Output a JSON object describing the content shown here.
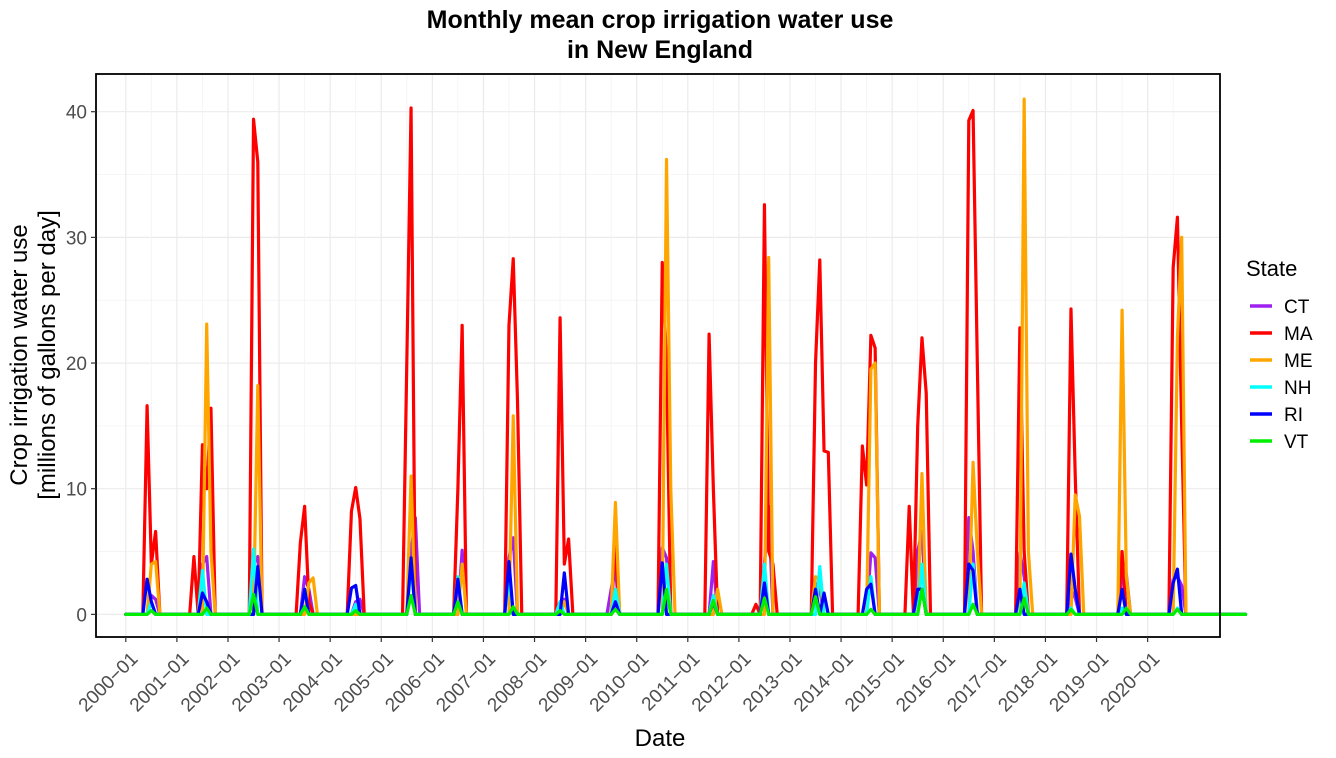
{
  "chart_data": {
    "type": "line",
    "title_line1": "Monthly mean crop irrigation water use",
    "title_line2": "in New England",
    "xlabel": "Date",
    "ylabel_line1": "Crop irrigation water use",
    "ylabel_line2": "[millions of gallons per day]",
    "ylim": [
      -1.8,
      43
    ],
    "yticks": [
      0,
      10,
      20,
      30,
      40
    ],
    "xlim": [
      "1999-06",
      "2021-06"
    ],
    "xticks": [
      "2000-01",
      "2001-01",
      "2002-01",
      "2003-01",
      "2004-01",
      "2005-01",
      "2006-01",
      "2007-01",
      "2008-01",
      "2009-01",
      "2010-01",
      "2011-01",
      "2012-01",
      "2013-01",
      "2014-01",
      "2015-01",
      "2016-01",
      "2017-01",
      "2018-01",
      "2019-01",
      "2020-01"
    ],
    "x_range": [
      "2000-01",
      "2021-12"
    ],
    "grid": true,
    "legend_placement": "right",
    "legend_title": "State",
    "series": [
      {
        "name": "CT",
        "color": "#a020f0",
        "peaks": [
          [
            "2000-07",
            1.5
          ],
          [
            "2000-08",
            1.2
          ],
          [
            "2001-07",
            4.0
          ],
          [
            "2001-08",
            4.6
          ],
          [
            "2002-07",
            4.0
          ],
          [
            "2002-08",
            4.6
          ],
          [
            "2003-07",
            3.0
          ],
          [
            "2003-08",
            2.0
          ],
          [
            "2004-07",
            1.0
          ],
          [
            "2004-08",
            1.2
          ],
          [
            "2005-08",
            5.0
          ],
          [
            "2005-09",
            7.7
          ],
          [
            "2006-08",
            5.1
          ],
          [
            "2007-07",
            4.5
          ],
          [
            "2007-08",
            6.1
          ],
          [
            "2008-07",
            1.0
          ],
          [
            "2008-08",
            1.2
          ],
          [
            "2009-07",
            2.0
          ],
          [
            "2009-08",
            3.6
          ],
          [
            "2010-07",
            5.3
          ],
          [
            "2010-08",
            4.5
          ],
          [
            "2011-07",
            4.2
          ],
          [
            "2012-07",
            4.0
          ],
          [
            "2012-08",
            8.6
          ],
          [
            "2013-07",
            2.5
          ],
          [
            "2013-08",
            2.0
          ],
          [
            "2014-08",
            4.9
          ],
          [
            "2014-09",
            4.5
          ],
          [
            "2015-07",
            5.0
          ],
          [
            "2015-08",
            6.6
          ],
          [
            "2016-07",
            7.7
          ],
          [
            "2016-08",
            5.0
          ],
          [
            "2017-07",
            4.9
          ],
          [
            "2017-08",
            3.0
          ],
          [
            "2018-07",
            2.0
          ],
          [
            "2018-08",
            1.3
          ],
          [
            "2019-07",
            3.0
          ],
          [
            "2019-08",
            3.2
          ],
          [
            "2020-07",
            2.8
          ],
          [
            "2020-08",
            3.0
          ],
          [
            "2020-09",
            2.3
          ]
        ]
      },
      {
        "name": "MA",
        "color": "#ff0000",
        "peaks": [
          [
            "2000-06",
            16.6
          ],
          [
            "2000-07",
            4.0
          ],
          [
            "2000-08",
            6.6
          ],
          [
            "2001-05",
            4.6
          ],
          [
            "2001-07",
            13.5
          ],
          [
            "2001-08",
            10.0
          ],
          [
            "2001-09",
            16.4
          ],
          [
            "2002-07",
            39.4
          ],
          [
            "2002-08",
            36.0
          ],
          [
            "2003-06",
            5.7
          ],
          [
            "2003-07",
            8.6
          ],
          [
            "2003-08",
            1.0
          ],
          [
            "2004-06",
            8.2
          ],
          [
            "2004-07",
            10.1
          ],
          [
            "2004-08",
            7.6
          ],
          [
            "2005-07",
            20.0
          ],
          [
            "2005-08",
            40.3
          ],
          [
            "2006-07",
            10.0
          ],
          [
            "2006-08",
            23.0
          ],
          [
            "2007-07",
            23.0
          ],
          [
            "2007-08",
            28.3
          ],
          [
            "2007-09",
            17.0
          ],
          [
            "2008-07",
            23.6
          ],
          [
            "2008-08",
            4.0
          ],
          [
            "2008-09",
            6.0
          ],
          [
            "2009-08",
            5.8
          ],
          [
            "2010-07",
            28.0
          ],
          [
            "2010-08",
            20.0
          ],
          [
            "2011-06",
            22.3
          ],
          [
            "2011-07",
            10.0
          ],
          [
            "2012-05",
            0.8
          ],
          [
            "2012-07",
            32.6
          ],
          [
            "2012-08",
            5.0
          ],
          [
            "2012-09",
            4.0
          ],
          [
            "2013-07",
            20.0
          ],
          [
            "2013-08",
            28.2
          ],
          [
            "2013-09",
            13.0
          ],
          [
            "2013-10",
            12.9
          ],
          [
            "2014-06",
            13.4
          ],
          [
            "2014-07",
            10.3
          ],
          [
            "2014-08",
            22.2
          ],
          [
            "2014-09",
            21.2
          ],
          [
            "2015-05",
            8.6
          ],
          [
            "2015-07",
            15.0
          ],
          [
            "2015-08",
            22.0
          ],
          [
            "2015-09",
            17.6
          ],
          [
            "2016-07",
            39.3
          ],
          [
            "2016-08",
            40.1
          ],
          [
            "2016-09",
            20.0
          ],
          [
            "2017-07",
            22.8
          ],
          [
            "2017-08",
            5.0
          ],
          [
            "2018-07",
            24.3
          ],
          [
            "2018-08",
            11.0
          ],
          [
            "2019-07",
            5.0
          ],
          [
            "2020-07",
            27.6
          ],
          [
            "2020-08",
            31.6
          ],
          [
            "2020-09",
            15.0
          ]
        ]
      },
      {
        "name": "ME",
        "color": "#ffa500",
        "peaks": [
          [
            "2000-07",
            4.0
          ],
          [
            "2000-08",
            4.2
          ],
          [
            "2001-08",
            23.1
          ],
          [
            "2001-09",
            5.0
          ],
          [
            "2002-08",
            18.2
          ],
          [
            "2003-08",
            2.5
          ],
          [
            "2003-09",
            2.9
          ],
          [
            "2005-08",
            11.0
          ],
          [
            "2006-08",
            4.0
          ],
          [
            "2007-08",
            15.8
          ],
          [
            "2008-08",
            1.0
          ],
          [
            "2009-08",
            8.9
          ],
          [
            "2010-08",
            36.2
          ],
          [
            "2010-09",
            10.0
          ],
          [
            "2011-08",
            2.0
          ],
          [
            "2012-08",
            28.4
          ],
          [
            "2013-07",
            3.0
          ],
          [
            "2013-08",
            2.8
          ],
          [
            "2014-08",
            19.5
          ],
          [
            "2014-09",
            20.0
          ],
          [
            "2015-08",
            11.2
          ],
          [
            "2016-08",
            12.1
          ],
          [
            "2016-09",
            5.0
          ],
          [
            "2017-08",
            41.0
          ],
          [
            "2017-09",
            5.0
          ],
          [
            "2018-08",
            9.5
          ],
          [
            "2018-09",
            7.8
          ],
          [
            "2019-07",
            24.2
          ],
          [
            "2019-08",
            3.0
          ],
          [
            "2020-08",
            22.0
          ],
          [
            "2020-09",
            30.0
          ]
        ]
      },
      {
        "name": "NH",
        "color": "#00ffff",
        "peaks": [
          [
            "2000-07",
            1.0
          ],
          [
            "2001-07",
            3.5
          ],
          [
            "2002-07",
            5.2
          ],
          [
            "2003-07",
            2.0
          ],
          [
            "2004-07",
            0.8
          ],
          [
            "2005-08",
            4.0
          ],
          [
            "2006-07",
            3.0
          ],
          [
            "2007-07",
            3.0
          ],
          [
            "2008-07",
            1.0
          ],
          [
            "2009-08",
            2.0
          ],
          [
            "2010-08",
            4.0
          ],
          [
            "2011-07",
            1.5
          ],
          [
            "2012-07",
            4.0
          ],
          [
            "2013-08",
            3.8
          ],
          [
            "2014-08",
            3.0
          ],
          [
            "2015-08",
            4.0
          ],
          [
            "2016-08",
            4.0
          ],
          [
            "2017-08",
            2.5
          ],
          [
            "2018-07",
            0.5
          ],
          [
            "2019-07",
            0.5
          ],
          [
            "2020-08",
            0.5
          ]
        ]
      },
      {
        "name": "RI",
        "color": "#0000ff",
        "peaks": [
          [
            "2000-06",
            2.8
          ],
          [
            "2000-07",
            1.0
          ],
          [
            "2001-07",
            1.7
          ],
          [
            "2001-08",
            1.0
          ],
          [
            "2002-08",
            3.8
          ],
          [
            "2003-07",
            2.0
          ],
          [
            "2004-06",
            2.1
          ],
          [
            "2004-07",
            2.3
          ],
          [
            "2005-08",
            4.5
          ],
          [
            "2006-07",
            2.8
          ],
          [
            "2007-07",
            4.2
          ],
          [
            "2008-08",
            3.3
          ],
          [
            "2009-08",
            1.0
          ],
          [
            "2010-07",
            4.1
          ],
          [
            "2011-07",
            1.0
          ],
          [
            "2012-07",
            2.5
          ],
          [
            "2013-07",
            2.0
          ],
          [
            "2013-09",
            1.7
          ],
          [
            "2014-07",
            2.0
          ],
          [
            "2014-08",
            2.4
          ],
          [
            "2015-07",
            2.0
          ],
          [
            "2015-08",
            2.0
          ],
          [
            "2016-07",
            4.0
          ],
          [
            "2016-08",
            3.5
          ],
          [
            "2017-07",
            2.0
          ],
          [
            "2018-07",
            4.8
          ],
          [
            "2018-08",
            2.0
          ],
          [
            "2019-07",
            2.0
          ],
          [
            "2020-07",
            2.5
          ],
          [
            "2020-08",
            3.6
          ]
        ]
      },
      {
        "name": "VT",
        "color": "#00ee00",
        "peaks": [
          [
            "2000-07",
            0.3
          ],
          [
            "2001-08",
            0.5
          ],
          [
            "2002-07",
            1.6
          ],
          [
            "2003-07",
            0.6
          ],
          [
            "2004-07",
            0.3
          ],
          [
            "2005-08",
            1.5
          ],
          [
            "2006-07",
            1.0
          ],
          [
            "2007-08",
            0.6
          ],
          [
            "2008-07",
            0.3
          ],
          [
            "2009-08",
            0.4
          ],
          [
            "2010-08",
            2.0
          ],
          [
            "2011-07",
            1.1
          ],
          [
            "2012-07",
            1.3
          ],
          [
            "2013-07",
            1.4
          ],
          [
            "2014-08",
            0.4
          ],
          [
            "2015-08",
            2.0
          ],
          [
            "2016-08",
            0.8
          ],
          [
            "2017-08",
            1.3
          ],
          [
            "2018-07",
            0.4
          ],
          [
            "2019-08",
            0.5
          ],
          [
            "2020-08",
            0.4
          ]
        ]
      }
    ]
  }
}
